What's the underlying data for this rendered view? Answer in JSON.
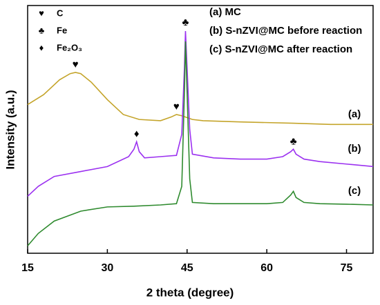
{
  "chart_data": {
    "type": "line",
    "xlabel": "2 theta (degree)",
    "ylabel": "Intensity (a.u.)",
    "xlim": [
      15,
      80
    ],
    "xticks": [
      15,
      30,
      45,
      60,
      75
    ],
    "ylim": [
      0,
      100
    ],
    "series": [
      {
        "name": "(a) MC",
        "color": "#c4a42a",
        "x": [
          15,
          18,
          21,
          23,
          24,
          25,
          27,
          30,
          33,
          36,
          40,
          42,
          43,
          44,
          46,
          48,
          55,
          65,
          72,
          80
        ],
        "values": [
          60,
          64,
          70,
          72.5,
          73,
          72.5,
          69,
          62,
          56,
          54,
          53.5,
          55,
          56,
          55.5,
          54,
          53.5,
          53,
          52.5,
          52,
          52
        ]
      },
      {
        "name": "(b) S-nZVI@MC before reaction",
        "color": "#9b30f0",
        "x": [
          15,
          17,
          20,
          25,
          30,
          34,
          35,
          35.5,
          36,
          37,
          40,
          43,
          44,
          44.5,
          44.7,
          45,
          45.5,
          46,
          50,
          55,
          60,
          63,
          64.5,
          65,
          65.5,
          67,
          70,
          75,
          80
        ],
        "values": [
          23,
          27,
          31,
          33,
          35,
          39,
          42,
          45,
          41,
          38.5,
          39,
          39.5,
          48,
          75,
          89.7,
          75,
          50,
          40,
          38.5,
          38,
          38,
          39,
          41,
          42,
          40,
          38,
          37,
          36,
          35
        ]
      },
      {
        "name": "(c) S-nZVI@MC after reaction",
        "color": "#2e8a2e",
        "x": [
          15,
          17,
          20,
          25,
          30,
          35,
          40,
          43,
          44,
          44.5,
          44.7,
          45,
          45.5,
          46,
          50,
          55,
          60,
          63,
          64.5,
          65,
          65.5,
          67,
          70,
          75,
          80
        ],
        "values": [
          3,
          8,
          13,
          17,
          18.7,
          19,
          19.5,
          20,
          27,
          65,
          85.5,
          65,
          30,
          20.5,
          20,
          20,
          20,
          20.5,
          23.5,
          25,
          22.5,
          20.5,
          20,
          19.8,
          19.5
        ]
      }
    ],
    "symbols": [
      {
        "symbol": "♥",
        "label": "C"
      },
      {
        "symbol": "♣",
        "label": "Fe"
      },
      {
        "symbol": "♦",
        "label": "Fe₂O₃"
      }
    ],
    "annotations": [
      {
        "text": "♥",
        "x": 24,
        "y": 76
      },
      {
        "text": "♥",
        "x": 43,
        "y": 59
      },
      {
        "text": "♣",
        "x": 44.7,
        "y": 93
      },
      {
        "text": "♦",
        "x": 35.5,
        "y": 48
      },
      {
        "text": "♣",
        "x": 65,
        "y": 45
      },
      {
        "text": "(a)",
        "x": 76.5,
        "y": 56
      },
      {
        "text": "(b)",
        "x": 76.5,
        "y": 42
      },
      {
        "text": "(c)",
        "x": 76.5,
        "y": 25
      }
    ]
  }
}
